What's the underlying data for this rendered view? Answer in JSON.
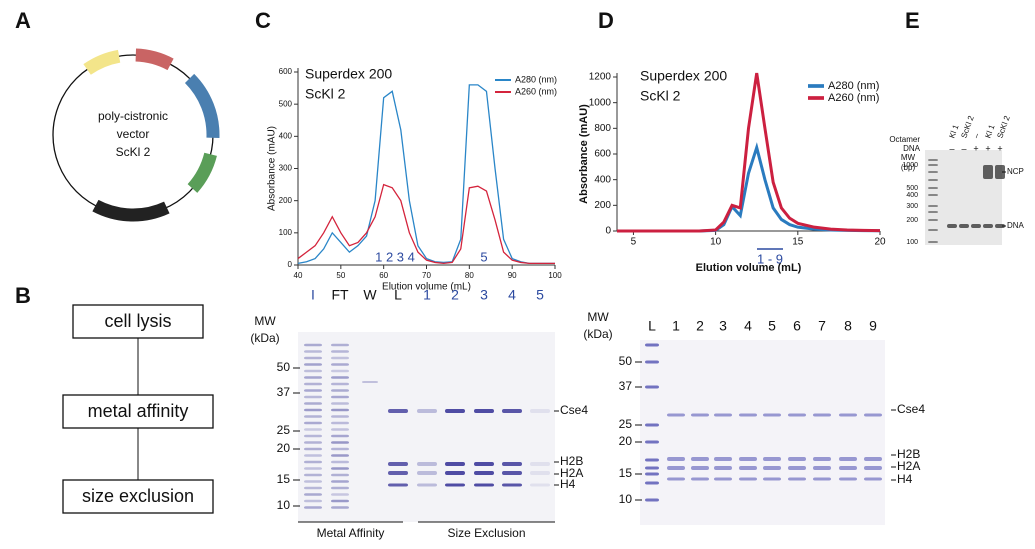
{
  "labels": [
    "A",
    "B",
    "C",
    "D",
    "E"
  ],
  "plasmid": {
    "text": [
      "poly-cistronic",
      "vector",
      "ScKl 2"
    ]
  },
  "workflow": [
    "cell lysis",
    "metal affinity",
    "size exclusion"
  ],
  "chart_data": [
    {
      "type": "line",
      "title": "Superdex 200",
      "subtitle": "ScKl 2",
      "x_label": "Elution volume (mL)",
      "y_label": "Absorbance (mAU)",
      "x": [
        40,
        42,
        44,
        46,
        48,
        50,
        52,
        54,
        56,
        58,
        60,
        62,
        64,
        66,
        68,
        70,
        72,
        74,
        76,
        78,
        80,
        82,
        84,
        86,
        88,
        90,
        92,
        94,
        96,
        98,
        100
      ],
      "series": [
        {
          "name": "A280 (nm)",
          "color": "#2a86c8",
          "values": [
            5,
            10,
            20,
            50,
            100,
            70,
            40,
            60,
            90,
            200,
            520,
            540,
            420,
            200,
            60,
            20,
            10,
            8,
            10,
            80,
            560,
            560,
            540,
            300,
            80,
            20,
            10,
            5,
            5,
            5,
            5
          ]
        },
        {
          "name": "A260 (nm)",
          "color": "#d4243c",
          "values": [
            20,
            40,
            60,
            100,
            150,
            100,
            60,
            70,
            100,
            150,
            250,
            240,
            200,
            100,
            40,
            15,
            8,
            5,
            8,
            50,
            240,
            245,
            230,
            140,
            40,
            15,
            8,
            5,
            5,
            5,
            5
          ]
        }
      ],
      "xlim": [
        40,
        100
      ],
      "xticks": [
        40,
        50,
        60,
        70,
        80,
        90,
        100
      ],
      "ylim": [
        0,
        600
      ],
      "yticks": [
        0,
        100,
        200,
        300,
        400,
        500,
        600
      ],
      "grid": false,
      "annotations": [
        "1 2 3 4",
        "5"
      ]
    },
    {
      "type": "line",
      "title": "Superdex 200",
      "subtitle": "ScKl 2",
      "x_label": "Elution volume (mL)",
      "y_label": "Absorbance (mAU)",
      "x": [
        4,
        6,
        8,
        9,
        10,
        10.5,
        11,
        11.5,
        12,
        12.5,
        13,
        13.5,
        14,
        14.5,
        15,
        16,
        17,
        18,
        19,
        20
      ],
      "series": [
        {
          "name": "A280 (nm)",
          "color": "#2a7bbf",
          "values": [
            0,
            0,
            0,
            0,
            5,
            50,
            190,
            120,
            450,
            650,
            400,
            180,
            90,
            50,
            30,
            15,
            8,
            5,
            3,
            2
          ]
        },
        {
          "name": "A260 (nm)",
          "color": "#cc2040",
          "values": [
            0,
            0,
            0,
            0,
            8,
            70,
            200,
            180,
            800,
            1230,
            800,
            380,
            180,
            100,
            60,
            30,
            15,
            8,
            5,
            3
          ]
        }
      ],
      "xlim": [
        4,
        20
      ],
      "xticks": [
        5,
        10,
        15,
        20
      ],
      "ylim": [
        0,
        1200
      ],
      "yticks": [
        0,
        200,
        400,
        600,
        800,
        1000,
        1200
      ],
      "grid": false,
      "annotations": [
        "1 - 9"
      ]
    }
  ],
  "gel_c": {
    "mw_title": [
      "MW",
      "(kDa)"
    ],
    "mw": [
      "50",
      "37",
      "25",
      "20",
      "15",
      "10"
    ],
    "lanes": [
      "I",
      "FT",
      "W",
      "L",
      "1",
      "2",
      "3",
      "4",
      "5"
    ],
    "bands": [
      "Cse4",
      "H2B",
      "H2A",
      "H4"
    ],
    "groups": [
      "Metal Affinity",
      "Size Exclusion"
    ]
  },
  "gel_d": {
    "mw_title": [
      "MW",
      "(kDa)"
    ],
    "mw": [
      "50",
      "37",
      "25",
      "20",
      "15",
      "10"
    ],
    "lanes": [
      "L",
      "1",
      "2",
      "3",
      "4",
      "5",
      "6",
      "7",
      "8",
      "9"
    ],
    "bands": [
      "Cse4",
      "H2B",
      "H2A",
      "H4"
    ]
  },
  "gel_e": {
    "rows": [
      "Octamer",
      "DNA"
    ],
    "lanes": [
      "Kl 1",
      "ScKl 2",
      "–",
      "Kl 1",
      "ScKl 2"
    ],
    "dna": [
      "–",
      "–",
      "+",
      "+",
      "+"
    ],
    "mw_title": [
      "MW",
      "(bp)"
    ],
    "mw": [
      "1000",
      "500",
      "400",
      "300",
      "200",
      "100"
    ],
    "bands": [
      "NCP",
      "DNA"
    ]
  }
}
